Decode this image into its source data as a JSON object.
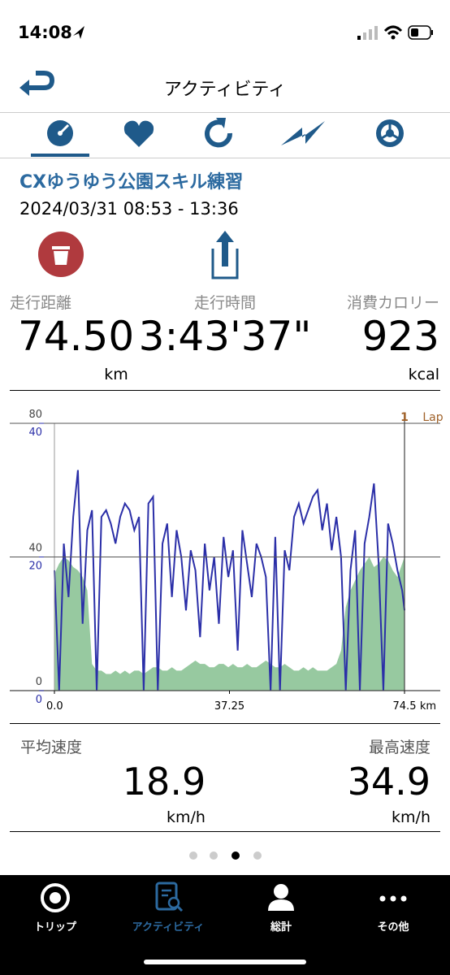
{
  "status_bar": {
    "time": "14:08"
  },
  "header": {
    "title": "アクティビティ"
  },
  "activity": {
    "name": "CXゆうゆう公園スキル練習",
    "period": "2024/03/31 08:53 - 13:36"
  },
  "stats": [
    {
      "label": "走行距離",
      "value": "74.50",
      "unit": "km"
    },
    {
      "label": "走行時間",
      "value": "3:43'37\""
    },
    {
      "label": "消費カロリー",
      "value": "923",
      "unit": "kcal"
    }
  ],
  "chart_data": {
    "type": "line",
    "x_label": "km",
    "x": [
      0,
      1,
      2,
      3,
      4,
      5,
      6,
      7,
      8,
      9,
      10,
      11,
      12,
      13,
      14,
      15,
      16,
      17,
      18,
      19,
      20,
      21,
      22,
      23,
      24,
      25,
      26,
      27,
      28,
      29,
      30,
      31,
      32,
      33,
      34,
      35,
      36,
      37,
      38,
      39,
      40,
      41,
      42,
      43,
      44,
      45,
      46,
      47,
      48,
      49,
      50,
      51,
      52,
      53,
      54,
      55,
      56,
      57,
      58,
      59,
      60,
      61,
      62,
      63,
      64,
      65,
      66,
      67,
      68,
      69,
      70,
      71,
      72,
      73,
      74,
      74.5
    ],
    "xlim": [
      0,
      74.5
    ],
    "xticks": [
      {
        "value": 0,
        "label": "0.0"
      },
      37.25,
      74.5
    ],
    "ylim": [
      0,
      80
    ],
    "yticks": [
      0,
      40,
      80
    ],
    "y2lim": [
      0,
      40
    ],
    "y2ticks": [
      0,
      20,
      40
    ],
    "y_color": "#444444",
    "y2_color": "#2b2fa8",
    "grid": true,
    "laps": [
      {
        "x": 74.5,
        "label": "1"
      }
    ],
    "lap_label": "Lap",
    "series": [
      {
        "type": "area",
        "color": "#97c9a0",
        "values": [
          35,
          38,
          40,
          39,
          37,
          36,
          34,
          30,
          8,
          6,
          6,
          5,
          5,
          6,
          5,
          6,
          5,
          6,
          6,
          5,
          6,
          7,
          7,
          6,
          6,
          7,
          6,
          6,
          7,
          8,
          9,
          8,
          8,
          7,
          7,
          8,
          8,
          7,
          8,
          7,
          7,
          8,
          7,
          7,
          8,
          9,
          8,
          7,
          7,
          8,
          7,
          6,
          6,
          7,
          6,
          7,
          6,
          6,
          6,
          7,
          8,
          12,
          25,
          30,
          33,
          36,
          38,
          40,
          37,
          38,
          40,
          39,
          36,
          34,
          38,
          40
        ]
      },
      {
        "type": "line",
        "axis": "y2",
        "color": "#2b2fa8",
        "values": [
          18,
          0,
          22,
          14,
          26,
          33,
          10,
          24,
          27,
          0,
          26,
          27,
          25,
          22,
          26,
          28,
          27,
          24,
          26,
          0,
          28,
          29,
          0,
          22,
          25,
          14,
          24,
          20,
          12,
          21,
          18,
          8,
          22,
          15,
          20,
          10,
          23,
          17,
          21,
          6,
          24,
          19,
          14,
          22,
          20,
          17,
          0,
          23,
          0,
          21,
          18,
          26,
          28,
          25,
          27,
          29,
          30,
          24,
          28,
          21,
          26,
          20,
          0,
          18,
          24,
          0,
          22,
          26,
          31,
          19,
          0,
          25,
          22,
          18,
          15,
          12
        ]
      }
    ]
  },
  "summary": [
    {
      "label": "平均速度",
      "value": "18.9",
      "unit": "km/h"
    },
    {
      "label": "最高速度",
      "value": "34.9",
      "unit": "km/h"
    }
  ],
  "tab_bar": [
    {
      "label": "トリップ"
    },
    {
      "label": "アクティビティ"
    },
    {
      "label": "総計"
    },
    {
      "label": "その他"
    }
  ]
}
